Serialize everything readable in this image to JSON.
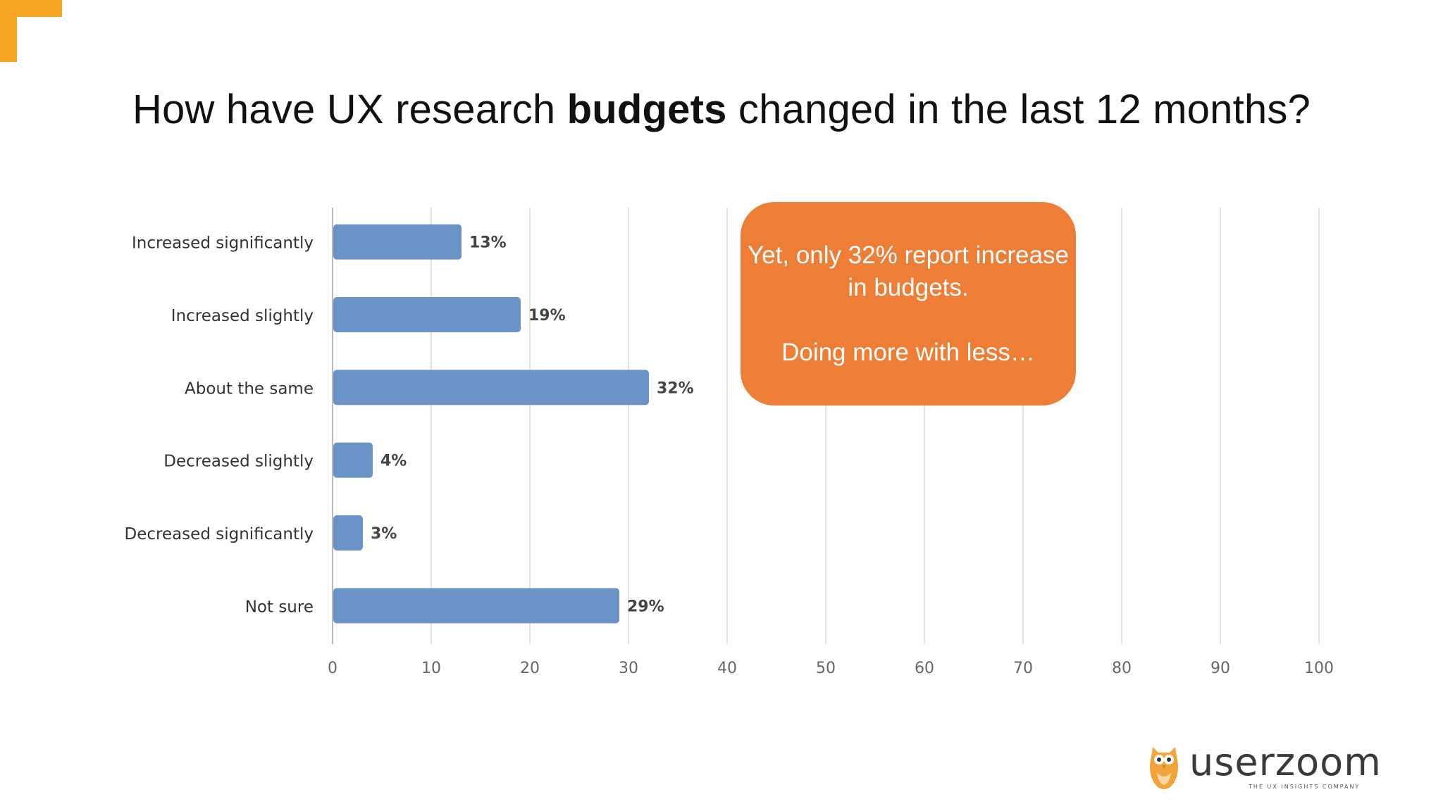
{
  "colors": {
    "accent_corner": "#F5A623",
    "bar": "#6A93C8",
    "callout_bg": "#EE7D36",
    "grid": "#E3E3E3",
    "axis": "#B8B8B8"
  },
  "title": {
    "before": "How have UX research ",
    "bold": "budgets",
    "after": " changed in the last 12 months?"
  },
  "chart_data": {
    "type": "bar",
    "orientation": "horizontal",
    "categories": [
      "Increased significantly",
      "Increased slightly",
      "About the same",
      "Decreased slightly",
      "Decreased significantly",
      "Not sure"
    ],
    "values": [
      13,
      19,
      32,
      4,
      3,
      29
    ],
    "value_labels": [
      "13%",
      "19%",
      "32%",
      "4%",
      "3%",
      "29%"
    ],
    "xlim": [
      0,
      100
    ],
    "xticks": [
      0,
      10,
      20,
      30,
      40,
      50,
      60,
      70,
      80,
      90,
      100
    ],
    "grid": true
  },
  "callout": {
    "line1": "Yet, only 32% report increase in budgets.",
    "line2": "Doing more with less…"
  },
  "logo": {
    "icon": "owl-icon",
    "brand": "userzoom",
    "tagline": "THE UX INSIGHTS COMPANY"
  }
}
